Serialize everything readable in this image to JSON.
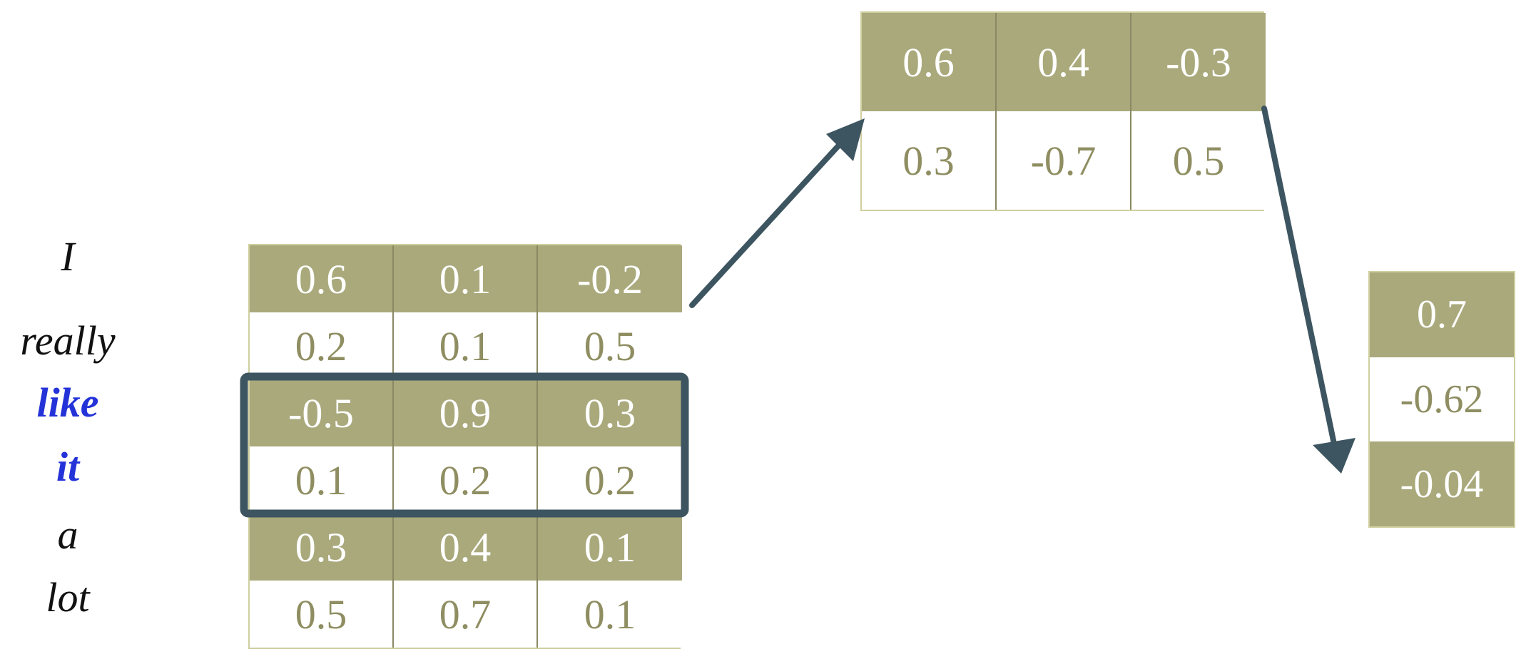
{
  "words": [
    {
      "text": "I",
      "highlight": false
    },
    {
      "text": "really",
      "highlight": false
    },
    {
      "text": "like",
      "highlight": true
    },
    {
      "text": "it",
      "highlight": true
    },
    {
      "text": "a",
      "highlight": false
    },
    {
      "text": "lot",
      "highlight": false
    }
  ],
  "input_matrix": {
    "rows": [
      [
        "0.6",
        "0.1",
        "-0.2"
      ],
      [
        "0.2",
        "0.1",
        "0.5"
      ],
      [
        "-0.5",
        "0.9",
        "0.3"
      ],
      [
        "0.1",
        "0.2",
        "0.2"
      ],
      [
        "0.3",
        "0.4",
        "0.1"
      ],
      [
        "0.5",
        "0.7",
        "0.1"
      ]
    ],
    "highlighted_window_rows": [
      2,
      3
    ]
  },
  "weight_matrix": {
    "rows": [
      [
        "0.6",
        "0.4",
        "-0.3"
      ],
      [
        "0.3",
        "-0.7",
        "0.5"
      ]
    ]
  },
  "output_vector": {
    "values": [
      "0.7",
      "-0.62",
      "-0.04"
    ]
  },
  "colors": {
    "dark_fill": "#a9a97c",
    "light_text": "#8f8e62",
    "highlight_word": "#2433d8",
    "arrow": "#3d5560",
    "window": "#3d5560"
  }
}
